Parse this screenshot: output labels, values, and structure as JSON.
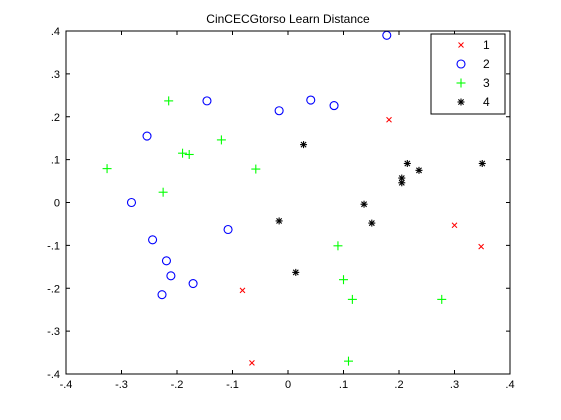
{
  "chart_data": {
    "type": "scatter",
    "title": "CinCECGtorso Learn Distance",
    "xlabel": "",
    "ylabel": "",
    "xlim": [
      -0.4,
      0.4
    ],
    "ylim": [
      -0.4,
      0.4
    ],
    "xticks": [
      -0.4,
      -0.3,
      -0.2,
      -0.1,
      0,
      0.1,
      0.2,
      0.3,
      0.4
    ],
    "yticks": [
      -0.4,
      -0.3,
      -0.2,
      -0.1,
      0,
      0.1,
      0.2,
      0.3,
      0.4
    ],
    "grid": false,
    "legend_position": "top-right",
    "series": [
      {
        "name": "1",
        "marker": "x",
        "color": "#ff0000",
        "points": [
          [
            0.182,
            0.193
          ],
          [
            0.3,
            -0.053
          ],
          [
            0.348,
            -0.103
          ],
          [
            -0.082,
            -0.205
          ],
          [
            -0.065,
            -0.374
          ]
        ]
      },
      {
        "name": "2",
        "marker": "o",
        "color": "#0000ff",
        "points": [
          [
            0.178,
            0.39
          ],
          [
            -0.146,
            0.237
          ],
          [
            0.041,
            0.239
          ],
          [
            0.083,
            0.226
          ],
          [
            -0.016,
            0.214
          ],
          [
            -0.254,
            0.155
          ],
          [
            -0.282,
            0.0
          ],
          [
            -0.108,
            -0.063
          ],
          [
            -0.244,
            -0.087
          ],
          [
            -0.219,
            -0.136
          ],
          [
            -0.211,
            -0.171
          ],
          [
            -0.171,
            -0.189
          ],
          [
            -0.227,
            -0.215
          ]
        ]
      },
      {
        "name": "3",
        "marker": "+",
        "color": "#00ff00",
        "points": [
          [
            -0.215,
            0.237
          ],
          [
            -0.12,
            0.146
          ],
          [
            -0.19,
            0.115
          ],
          [
            -0.178,
            0.112
          ],
          [
            -0.326,
            0.079
          ],
          [
            -0.058,
            0.078
          ],
          [
            -0.225,
            0.024
          ],
          [
            0.09,
            -0.101
          ],
          [
            0.1,
            -0.18
          ],
          [
            0.116,
            -0.226
          ],
          [
            0.277,
            -0.226
          ],
          [
            0.109,
            -0.37
          ]
        ]
      },
      {
        "name": "4",
        "marker": "*",
        "color": "#000000",
        "points": [
          [
            0.028,
            0.135
          ],
          [
            0.215,
            0.091
          ],
          [
            0.35,
            0.091
          ],
          [
            0.236,
            0.075
          ],
          [
            0.205,
            0.057
          ],
          [
            0.205,
            0.046
          ],
          [
            0.137,
            -0.004
          ],
          [
            0.151,
            -0.048
          ],
          [
            -0.016,
            -0.043
          ],
          [
            0.014,
            -0.163
          ]
        ]
      }
    ]
  }
}
